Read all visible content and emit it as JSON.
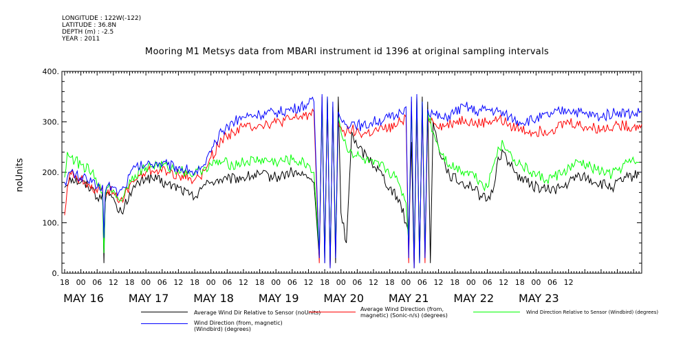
{
  "header": {
    "longitude": "LONGITUDE : 122W(-122)",
    "latitude": "LATITUDE : 36.8N",
    "depth": "DEPTH (m) : -2.5",
    "year": "YEAR : 2011"
  },
  "chart_data": {
    "type": "line",
    "title": "Mooring M1 Metsys data from MBARI instrument id 1396 at original sampling intervals",
    "ylabel": "noUnits",
    "xlabel": "",
    "ylim": [
      0,
      400
    ],
    "yticks": [
      0,
      100,
      200,
      300,
      400
    ],
    "xlim_hours": [
      -7,
      207
    ],
    "x_hour_ticks": [
      "18",
      "00",
      "06",
      "12",
      "18",
      "00",
      "06",
      "12",
      "18",
      "00",
      "06",
      "12",
      "18",
      "00",
      "06",
      "12",
      "18",
      "00",
      "06",
      "12",
      "18",
      "00",
      "06",
      "12",
      "18",
      "00",
      "06",
      "12",
      "18",
      "00",
      "06",
      "12"
    ],
    "x_day_labels": [
      "MAY 16",
      "MAY 17",
      "MAY 18",
      "MAY 19",
      "MAY 20",
      "MAY 21",
      "MAY 22",
      "MAY 23"
    ],
    "grid": false,
    "legend_position": "bottom",
    "x_units": "hours after 2011-05-16 00:00",
    "series": [
      {
        "name": "Average Wind Dir Relative to Sensor (noUnits)",
        "color": "#000000",
        "points": [
          [
            -6,
            170
          ],
          [
            -4,
            190
          ],
          [
            0,
            180
          ],
          [
            4,
            170
          ],
          [
            6,
            150
          ],
          [
            8,
            160
          ],
          [
            8.5,
            20
          ],
          [
            9,
            140
          ],
          [
            10,
            160
          ],
          [
            12,
            150
          ],
          [
            14,
            120
          ],
          [
            16,
            130
          ],
          [
            18,
            160
          ],
          [
            20,
            170
          ],
          [
            24,
            190
          ],
          [
            28,
            185
          ],
          [
            32,
            175
          ],
          [
            36,
            170
          ],
          [
            40,
            155
          ],
          [
            42,
            150
          ],
          [
            44,
            170
          ],
          [
            46,
            175
          ],
          [
            48,
            180
          ],
          [
            50,
            185
          ],
          [
            54,
            185
          ],
          [
            60,
            190
          ],
          [
            66,
            195
          ],
          [
            72,
            190
          ],
          [
            78,
            200
          ],
          [
            84,
            190
          ],
          [
            86,
            180
          ],
          [
            88,
            30
          ],
          [
            89,
            340
          ],
          [
            90,
            20
          ],
          [
            91,
            350
          ],
          [
            92,
            10
          ],
          [
            93,
            330
          ],
          [
            94,
            20
          ],
          [
            95,
            350
          ],
          [
            96,
            120
          ],
          [
            98,
            60
          ],
          [
            100,
            280
          ],
          [
            102,
            250
          ],
          [
            106,
            230
          ],
          [
            110,
            205
          ],
          [
            114,
            170
          ],
          [
            118,
            140
          ],
          [
            120,
            100
          ],
          [
            121,
            80
          ],
          [
            122,
            260
          ],
          [
            123,
            10
          ],
          [
            124,
            330
          ],
          [
            125,
            20
          ],
          [
            126,
            350
          ],
          [
            127,
            30
          ],
          [
            128,
            340
          ],
          [
            129,
            20
          ],
          [
            130,
            300
          ],
          [
            132,
            250
          ],
          [
            136,
            195
          ],
          [
            140,
            180
          ],
          [
            144,
            175
          ],
          [
            148,
            150
          ],
          [
            150,
            145
          ],
          [
            152,
            160
          ],
          [
            154,
            230
          ],
          [
            156,
            240
          ],
          [
            158,
            220
          ],
          [
            160,
            200
          ],
          [
            166,
            175
          ],
          [
            172,
            165
          ],
          [
            178,
            170
          ],
          [
            184,
            195
          ],
          [
            190,
            180
          ],
          [
            196,
            170
          ],
          [
            202,
            190
          ],
          [
            206,
            195
          ]
        ]
      },
      {
        "name": "Average Wind Direction (from, magnetic) (Sonic-n/s) (degrees)",
        "color": "#ff0000",
        "points": [
          [
            -6,
            115
          ],
          [
            -5,
            170
          ],
          [
            -4,
            200
          ],
          [
            0,
            185
          ],
          [
            4,
            175
          ],
          [
            6,
            160
          ],
          [
            8,
            170
          ],
          [
            8.5,
            60
          ],
          [
            9,
            150
          ],
          [
            10,
            165
          ],
          [
            12,
            160
          ],
          [
            14,
            140
          ],
          [
            16,
            150
          ],
          [
            18,
            175
          ],
          [
            20,
            185
          ],
          [
            24,
            200
          ],
          [
            28,
            205
          ],
          [
            32,
            200
          ],
          [
            36,
            195
          ],
          [
            40,
            190
          ],
          [
            42,
            185
          ],
          [
            44,
            190
          ],
          [
            46,
            205
          ],
          [
            48,
            230
          ],
          [
            52,
            265
          ],
          [
            56,
            280
          ],
          [
            60,
            290
          ],
          [
            66,
            295
          ],
          [
            72,
            298
          ],
          [
            78,
            305
          ],
          [
            84,
            315
          ],
          [
            86,
            320
          ],
          [
            88,
            20
          ],
          [
            89,
            350
          ],
          [
            90,
            30
          ],
          [
            91,
            340
          ],
          [
            92,
            10
          ],
          [
            93,
            330
          ],
          [
            94,
            40
          ],
          [
            95,
            300
          ],
          [
            96,
            290
          ],
          [
            98,
            280
          ],
          [
            100,
            285
          ],
          [
            104,
            275
          ],
          [
            108,
            280
          ],
          [
            112,
            285
          ],
          [
            116,
            290
          ],
          [
            118,
            300
          ],
          [
            120,
            310
          ],
          [
            121,
            20
          ],
          [
            122,
            340
          ],
          [
            123,
            10
          ],
          [
            124,
            350
          ],
          [
            125,
            30
          ],
          [
            126,
            330
          ],
          [
            127,
            20
          ],
          [
            128,
            310
          ],
          [
            130,
            300
          ],
          [
            134,
            290
          ],
          [
            138,
            300
          ],
          [
            142,
            305
          ],
          [
            146,
            295
          ],
          [
            150,
            300
          ],
          [
            154,
            305
          ],
          [
            158,
            295
          ],
          [
            162,
            285
          ],
          [
            168,
            280
          ],
          [
            174,
            285
          ],
          [
            180,
            300
          ],
          [
            186,
            290
          ],
          [
            192,
            285
          ],
          [
            198,
            295
          ],
          [
            204,
            290
          ],
          [
            207,
            295
          ]
        ]
      },
      {
        "name": "Wind Direction Relative to Sensor (Windbird) (degrees)",
        "color": "#00ff00",
        "points": [
          [
            -6,
            190
          ],
          [
            -5,
            240
          ],
          [
            -4,
            230
          ],
          [
            0,
            215
          ],
          [
            4,
            200
          ],
          [
            6,
            175
          ],
          [
            8,
            160
          ],
          [
            8.5,
            40
          ],
          [
            9,
            150
          ],
          [
            10,
            170
          ],
          [
            12,
            165
          ],
          [
            14,
            145
          ],
          [
            16,
            155
          ],
          [
            18,
            185
          ],
          [
            20,
            195
          ],
          [
            24,
            210
          ],
          [
            28,
            215
          ],
          [
            32,
            210
          ],
          [
            36,
            205
          ],
          [
            40,
            200
          ],
          [
            42,
            195
          ],
          [
            44,
            205
          ],
          [
            46,
            210
          ],
          [
            48,
            215
          ],
          [
            52,
            220
          ],
          [
            56,
            215
          ],
          [
            60,
            220
          ],
          [
            66,
            225
          ],
          [
            72,
            220
          ],
          [
            78,
            225
          ],
          [
            84,
            215
          ],
          [
            86,
            200
          ],
          [
            88,
            40
          ],
          [
            89,
            340
          ],
          [
            90,
            30
          ],
          [
            91,
            350
          ],
          [
            92,
            20
          ],
          [
            93,
            330
          ],
          [
            94,
            50
          ],
          [
            95,
            310
          ],
          [
            96,
            280
          ],
          [
            98,
            250
          ],
          [
            100,
            240
          ],
          [
            104,
            225
          ],
          [
            108,
            215
          ],
          [
            112,
            210
          ],
          [
            116,
            190
          ],
          [
            118,
            170
          ],
          [
            120,
            140
          ],
          [
            121,
            60
          ],
          [
            122,
            330
          ],
          [
            123,
            30
          ],
          [
            124,
            350
          ],
          [
            125,
            20
          ],
          [
            126,
            340
          ],
          [
            127,
            40
          ],
          [
            128,
            320
          ],
          [
            130,
            280
          ],
          [
            132,
            250
          ],
          [
            136,
            215
          ],
          [
            140,
            205
          ],
          [
            144,
            200
          ],
          [
            148,
            180
          ],
          [
            150,
            170
          ],
          [
            152,
            210
          ],
          [
            154,
            250
          ],
          [
            156,
            255
          ],
          [
            158,
            240
          ],
          [
            160,
            225
          ],
          [
            166,
            200
          ],
          [
            172,
            185
          ],
          [
            178,
            200
          ],
          [
            184,
            220
          ],
          [
            190,
            205
          ],
          [
            196,
            195
          ],
          [
            202,
            220
          ],
          [
            206,
            220
          ]
        ]
      },
      {
        "name": "Wind Direction (from, magnetic) (Windbird) (degrees)",
        "color": "#0000ff",
        "points": [
          [
            -6,
            180
          ],
          [
            -4,
            200
          ],
          [
            0,
            190
          ],
          [
            4,
            180
          ],
          [
            6,
            170
          ],
          [
            8,
            175
          ],
          [
            8.5,
            70
          ],
          [
            9,
            160
          ],
          [
            10,
            175
          ],
          [
            12,
            170
          ],
          [
            14,
            160
          ],
          [
            16,
            170
          ],
          [
            18,
            195
          ],
          [
            20,
            210
          ],
          [
            24,
            215
          ],
          [
            28,
            220
          ],
          [
            32,
            215
          ],
          [
            36,
            210
          ],
          [
            40,
            205
          ],
          [
            42,
            200
          ],
          [
            44,
            205
          ],
          [
            46,
            215
          ],
          [
            48,
            240
          ],
          [
            52,
            280
          ],
          [
            56,
            300
          ],
          [
            60,
            310
          ],
          [
            66,
            315
          ],
          [
            72,
            318
          ],
          [
            78,
            325
          ],
          [
            84,
            335
          ],
          [
            86,
            340
          ],
          [
            88,
            30
          ],
          [
            89,
            355
          ],
          [
            90,
            20
          ],
          [
            91,
            350
          ],
          [
            92,
            10
          ],
          [
            93,
            340
          ],
          [
            94,
            30
          ],
          [
            95,
            320
          ],
          [
            96,
            305
          ],
          [
            98,
            295
          ],
          [
            100,
            300
          ],
          [
            104,
            290
          ],
          [
            108,
            300
          ],
          [
            112,
            305
          ],
          [
            116,
            310
          ],
          [
            118,
            320
          ],
          [
            120,
            330
          ],
          [
            121,
            30
          ],
          [
            122,
            350
          ],
          [
            123,
            10
          ],
          [
            124,
            355
          ],
          [
            125,
            20
          ],
          [
            126,
            340
          ],
          [
            127,
            30
          ],
          [
            128,
            325
          ],
          [
            130,
            315
          ],
          [
            134,
            305
          ],
          [
            138,
            320
          ],
          [
            142,
            330
          ],
          [
            146,
            320
          ],
          [
            150,
            325
          ],
          [
            154,
            320
          ],
          [
            158,
            310
          ],
          [
            162,
            300
          ],
          [
            168,
            305
          ],
          [
            174,
            315
          ],
          [
            180,
            325
          ],
          [
            186,
            315
          ],
          [
            192,
            310
          ],
          [
            198,
            320
          ],
          [
            204,
            315
          ],
          [
            207,
            320
          ]
        ]
      }
    ]
  }
}
